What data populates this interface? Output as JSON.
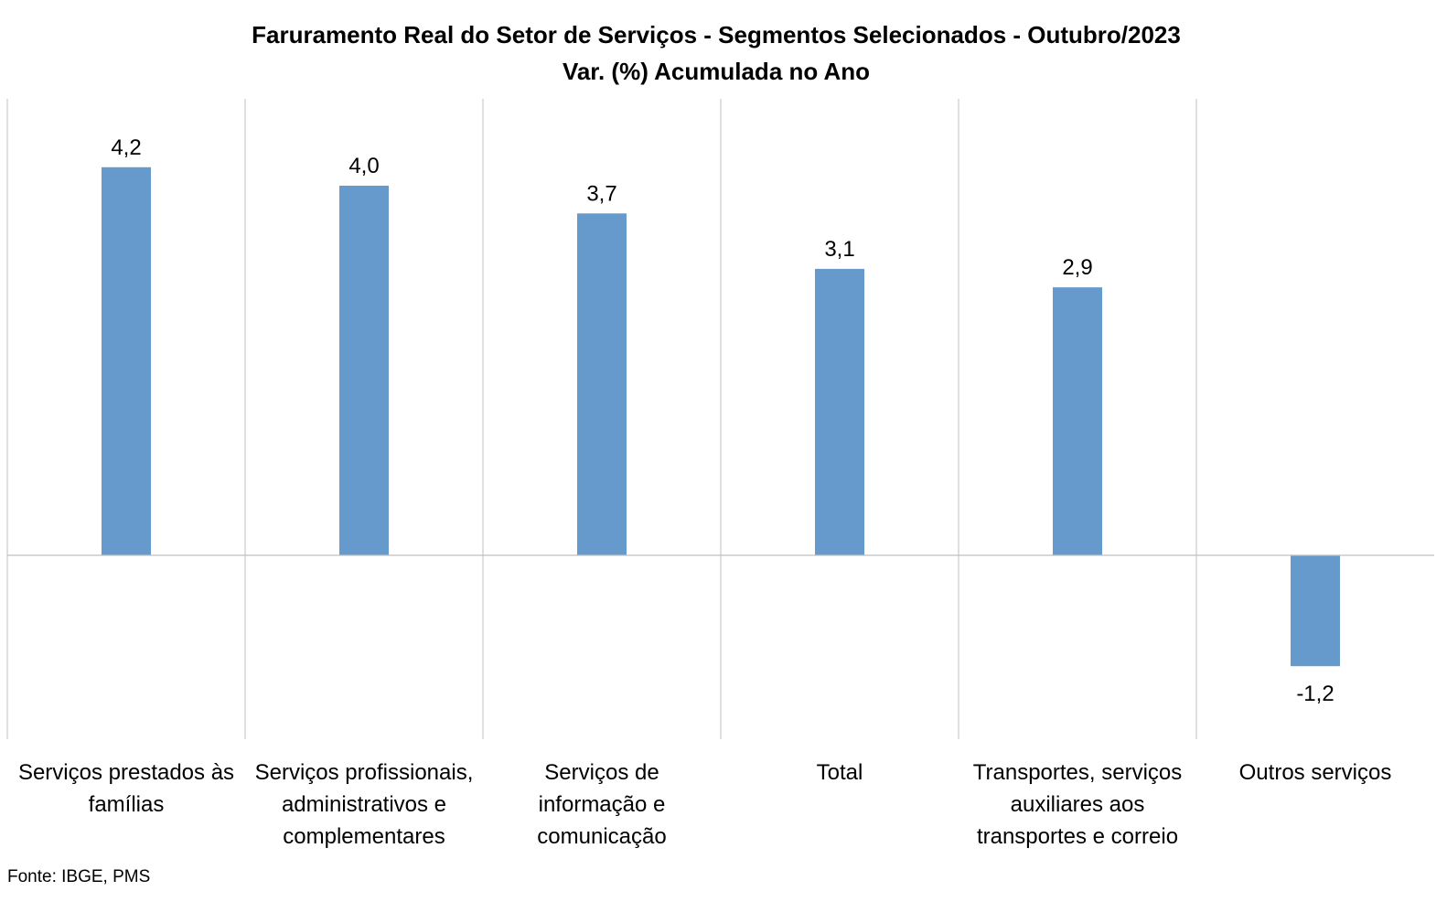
{
  "chart_data": {
    "type": "bar",
    "title_lines": [
      "Faruramento Real do Setor de Serviços - Segmentos Selecionados - Outubro/2023",
      "Var. (%) Acumulada no Ano"
    ],
    "categories": [
      [
        "Serviços prestados às",
        "famílias"
      ],
      [
        "Serviços profissionais,",
        "administrativos e",
        "complementares"
      ],
      [
        "Serviços de",
        "informação e",
        "comunicação"
      ],
      [
        "Total"
      ],
      [
        "Transportes, serviços",
        "auxiliares aos",
        "transportes e correio"
      ],
      [
        "Outros serviços"
      ]
    ],
    "values": [
      4.2,
      4.0,
      3.7,
      3.1,
      2.9,
      -1.2
    ],
    "value_labels": [
      "4,2",
      "4,0",
      "3,7",
      "3,1",
      "2,9",
      "-1,2"
    ],
    "ylim": [
      -2.0,
      5.0
    ],
    "bar_color": "#6699cc",
    "grid": "vertical-separators",
    "legend": "none"
  },
  "source": "Fonte: IBGE, PMS"
}
